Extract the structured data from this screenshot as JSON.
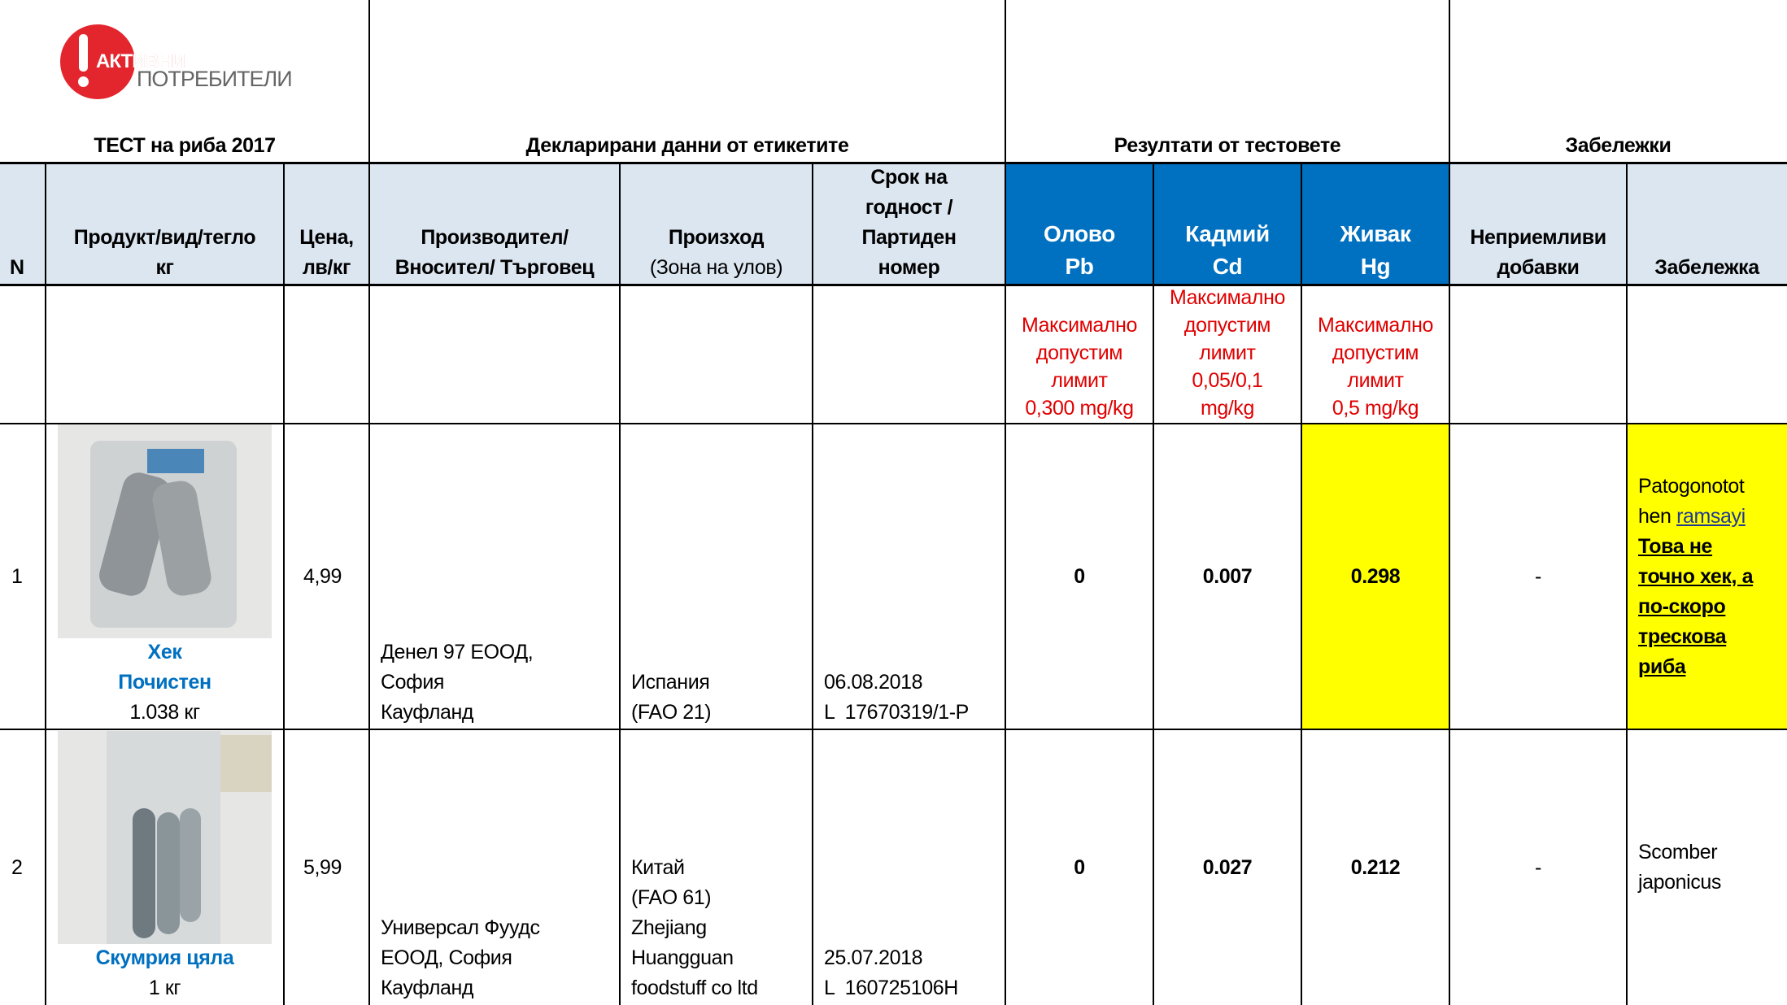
{
  "logo": {
    "line1": "АКТИВНИ",
    "line2": "ПОТРЕБИТЕЛИ",
    "accent": "#e3262e"
  },
  "sections": {
    "test": "ТЕСТ на риба 2017",
    "declared": "Декларирани данни от етикетите",
    "results": "Резултати от тестовете",
    "notes": "Забележки"
  },
  "columns": {
    "n": "N",
    "product": [
      "Продукт/вид/тегло",
      "кг"
    ],
    "price": [
      "Цена,",
      "лв/кг"
    ],
    "producer": [
      "Производител/",
      "Вносител/ Търговец"
    ],
    "origin": [
      "Произход",
      "(Зона на улов)"
    ],
    "expiry": [
      "Срок на",
      "годност /",
      "Партиден",
      "номер"
    ],
    "pb": [
      "Олово",
      "Pb"
    ],
    "cd": [
      "Кадмий",
      "Cd"
    ],
    "hg": [
      "Живак",
      "Hg"
    ],
    "additives": [
      "Неприемливи",
      "добавки"
    ],
    "remark": "Забележка"
  },
  "limits": {
    "pb": [
      "Максимално",
      "допустим",
      "лимит",
      "0,300 mg/kg"
    ],
    "cd": [
      "Максимално",
      "допустим",
      "лимит",
      "0,05/0,1",
      "mg/kg"
    ],
    "hg": [
      "Максимално",
      "допустим",
      "лимит",
      "0,5 mg/kg"
    ]
  },
  "colors": {
    "header_light": "#dce6f1",
    "header_blue": "#0070c0",
    "limit_red": "#e00000",
    "highlight": "#ffff00",
    "product_name": "#0070c0"
  },
  "rows": [
    {
      "n": "1",
      "product_name": [
        "Хек",
        "Почистен"
      ],
      "weight": "1.038 кг",
      "price": "4,99",
      "producer": [
        "Денел 97 ЕООД,",
        "София",
        "Кауфланд"
      ],
      "origin": [
        "Испания",
        "(FAO 21)"
      ],
      "expiry": [
        "06.08.2018",
        "L  17670319/1-P"
      ],
      "pb": "0",
      "cd": "0.007",
      "hg": "0.298",
      "hg_highlight": true,
      "additives": "-",
      "remark": {
        "plain1": "Patogonotot",
        "plain2": "hen ",
        "link": "ramsayi",
        "bold": [
          "Това не",
          "точно хек, а",
          "по-скоро",
          "трескова",
          "риба"
        ]
      }
    },
    {
      "n": "2",
      "product_name": [
        "Скумрия цяла"
      ],
      "weight": "1 кг",
      "price": "5,99",
      "producer": [
        "Универсал Фуудс",
        "ЕООД, София",
        "Кауфланд"
      ],
      "origin": [
        "Китай",
        "(FAO 61)",
        "Zhejiang",
        "Huangguan",
        "foodstuff co ltd"
      ],
      "expiry": [
        "25.07.2018",
        "L  160725106H"
      ],
      "pb": "0",
      "cd": "0.027",
      "hg": "0.212",
      "hg_highlight": false,
      "additives": "-",
      "remark": {
        "lines": [
          "Scomber",
          "japonicus"
        ]
      }
    }
  ]
}
